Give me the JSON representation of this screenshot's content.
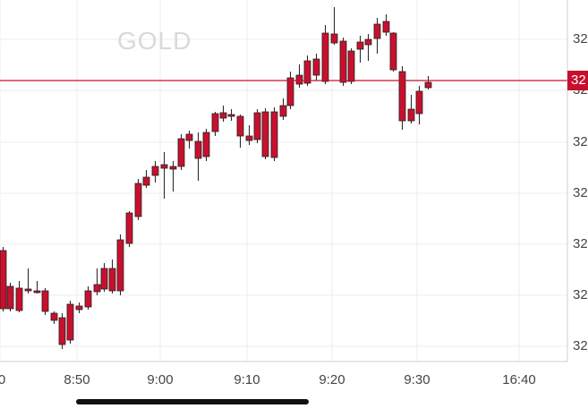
{
  "symbol": "GOLD",
  "current_price_label": "32",
  "y_axis_labels": [
    "32",
    "32",
    "32",
    "32",
    "32",
    "32",
    "32"
  ],
  "x_axis_labels": [
    "0",
    "8:50",
    "9:00",
    "9:10",
    "9:20",
    "9:30",
    "16:40"
  ],
  "colors": {
    "up": "#1f9d3a",
    "down": "#c8102e",
    "grid": "#ebebeb",
    "price_line": "#c8102e"
  },
  "chart_data": {
    "type": "candlestick",
    "candles": [
      [
        1,
        3,
        -2,
        2
      ],
      [
        2,
        3,
        1,
        -3
      ],
      [
        3,
        5,
        2,
        -1
      ],
      [
        4,
        2,
        2,
        -1
      ],
      [
        5,
        9,
        -2,
        9
      ],
      [
        6,
        2,
        -3,
        8
      ],
      [
        7,
        5,
        -3,
        10
      ],
      [
        10,
        6,
        -3,
        2
      ],
      [
        11,
        4,
        -3,
        8
      ],
      [
        12,
        4,
        -2,
        2
      ],
      [
        13,
        8,
        -2,
        4
      ],
      [
        14,
        7,
        -3,
        3
      ],
      [
        15,
        8,
        -1,
        3
      ],
      [
        16,
        9,
        -2,
        3
      ],
      [
        17,
        8,
        -4,
        3
      ],
      [
        18,
        9,
        -3,
        3
      ],
      [
        19,
        5,
        -3,
        10
      ],
      [
        20,
        8,
        -3,
        11
      ],
      [
        21,
        5,
        -3,
        12
      ],
      [
        22,
        7,
        -2,
        9
      ],
      [
        23,
        4,
        -2,
        4
      ],
      [
        24,
        6,
        -2,
        2
      ],
      [
        25,
        4,
        -2,
        4
      ],
      [
        26,
        4,
        -2,
        4
      ],
      [
        27,
        8,
        -2,
        0
      ],
      [
        28,
        4,
        -2,
        3
      ],
      [
        29,
        7,
        -2,
        2
      ],
      [
        30,
        9,
        -4,
        0
      ],
      [
        31,
        4,
        -3,
        0
      ],
      [
        32,
        11,
        -3,
        -3
      ],
      [
        33,
        3,
        -2,
        -1
      ],
      [
        34,
        8,
        -4,
        2
      ],
      [
        35,
        7,
        -1,
        2
      ],
      [
        36,
        8,
        -2,
        0
      ],
      [
        37,
        8,
        -2,
        0
      ],
      [
        38,
        6,
        -3,
        2
      ],
      [
        39,
        3,
        -3,
        1
      ],
      [
        40,
        4,
        -4,
        0
      ],
      [
        41,
        3,
        -1,
        1
      ],
      [
        42,
        8,
        -3,
        2
      ],
      [
        43,
        3,
        -3,
        2
      ],
      [
        44,
        7,
        -2,
        0
      ],
      [
        45,
        7,
        -3,
        0
      ],
      [
        46,
        9,
        -4,
        0
      ],
      [
        47,
        8,
        -4,
        0
      ],
      [
        48,
        7,
        -4,
        3
      ],
      [
        49,
        6,
        -3,
        1
      ],
      [
        50,
        8,
        -3,
        1
      ],
      [
        51,
        9,
        -2,
        3
      ],
      [
        52,
        9,
        -2,
        4
      ],
      [
        53,
        7,
        -3,
        2
      ],
      [
        54,
        7,
        -3,
        3
      ],
      [
        55,
        5,
        -2,
        1
      ],
      [
        56,
        8,
        -4,
        3
      ],
      [
        57,
        5,
        -3,
        1
      ],
      [
        58,
        3,
        -2,
        1
      ],
      [
        59,
        7,
        -4,
        2
      ],
      [
        60,
        9,
        -2,
        3
      ],
      [
        61,
        8,
        -3,
        2
      ]
    ]
  }
}
